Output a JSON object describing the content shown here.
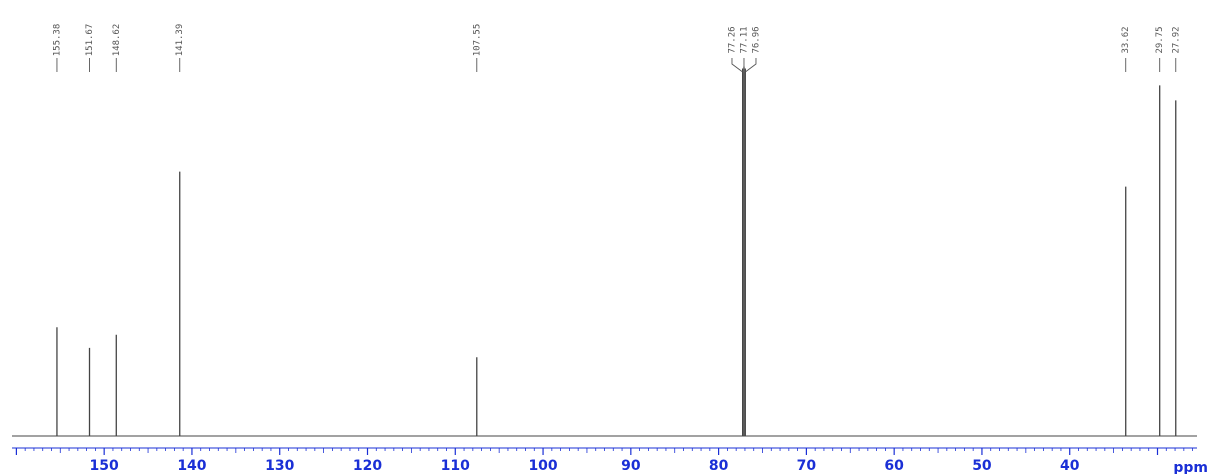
{
  "chart_data": {
    "type": "line",
    "title": "",
    "xlabel": "ppm",
    "ylabel": "",
    "x_reversed": true,
    "xlim": [
      160.5,
      25.5
    ],
    "ylim": [
      0,
      1
    ],
    "grid": false,
    "colors": {
      "spectrum": "#444444",
      "axis": "#1a2fd6",
      "peak_label": "#555555",
      "leader": "#555555"
    },
    "major_ticks": [
      150,
      140,
      130,
      120,
      110,
      100,
      90,
      80,
      70,
      60,
      50,
      40
    ],
    "tick_labels": [
      "150",
      "140",
      "130",
      "120",
      "110",
      "100",
      "90",
      "80",
      "70",
      "60",
      "50",
      "40"
    ],
    "minor_tick_step": 1,
    "peaks": [
      {
        "shift": 155.38,
        "label": "155.38",
        "intensity": 0.29
      },
      {
        "shift": 151.67,
        "label": "151.67",
        "intensity": 0.235
      },
      {
        "shift": 148.62,
        "label": "148.62",
        "intensity": 0.27
      },
      {
        "shift": 141.39,
        "label": "141.39",
        "intensity": 0.705
      },
      {
        "shift": 107.55,
        "label": "107.55",
        "intensity": 0.21
      },
      {
        "shift": 77.26,
        "label": "77.26",
        "intensity": 0.98
      },
      {
        "shift": 77.11,
        "label": "77.11",
        "intensity": 0.985
      },
      {
        "shift": 76.96,
        "label": "76.96",
        "intensity": 0.98
      },
      {
        "shift": 33.62,
        "label": "33.62",
        "intensity": 0.665
      },
      {
        "shift": 29.75,
        "label": "29.75",
        "intensity": 0.935
      },
      {
        "shift": 27.92,
        "label": "27.92",
        "intensity": 0.895
      }
    ]
  }
}
